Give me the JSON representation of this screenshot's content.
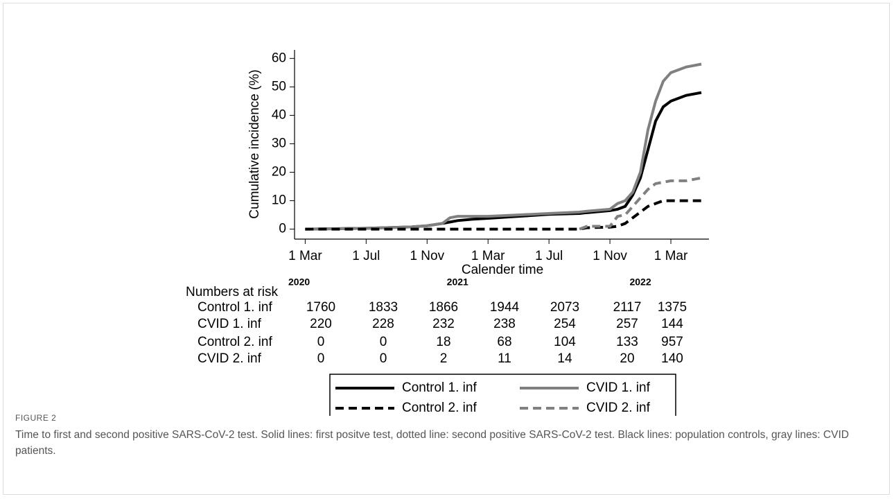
{
  "chart_data": {
    "type": "line",
    "x_label": "Calender time",
    "y_label": "Cumulative incidence (%)",
    "xlim": [
      -0.7,
      26.5
    ],
    "ylim": [
      -3.5,
      63
    ],
    "xticks": [
      {
        "value": 0,
        "label": "1 Mar"
      },
      {
        "value": 4,
        "label": "1 Jul"
      },
      {
        "value": 8,
        "label": "1 Nov"
      },
      {
        "value": 12,
        "label": "1 Mar"
      },
      {
        "value": 16,
        "label": "1 Jul"
      },
      {
        "value": 20,
        "label": "1 Nov"
      },
      {
        "value": 24,
        "label": "1 Mar"
      }
    ],
    "year_labels": [
      {
        "value": -0.4,
        "label": "2020"
      },
      {
        "value": 10,
        "label": "2021"
      },
      {
        "value": 22,
        "label": "2022"
      }
    ],
    "yticks": [
      0,
      10,
      20,
      30,
      40,
      50,
      60
    ],
    "x": [
      0,
      4,
      7,
      8,
      9,
      9.5,
      10,
      11,
      12,
      14,
      16,
      18,
      18.5,
      20,
      20.5,
      21,
      21.5,
      22,
      22.5,
      23,
      23.5,
      24,
      25,
      26
    ],
    "series": [
      {
        "name": "Control 1. inf",
        "color": "#000000",
        "style": "solid",
        "values": [
          0,
          0.3,
          0.8,
          1.2,
          2,
          2.5,
          3,
          3.5,
          3.8,
          4.5,
          5.2,
          5.5,
          5.8,
          6.5,
          7,
          8,
          12,
          18,
          28,
          38,
          43,
          45,
          47,
          48
        ]
      },
      {
        "name": "CVID 1. inf",
        "color": "#808080",
        "style": "solid",
        "values": [
          0,
          0.3,
          0.8,
          1.2,
          2,
          4,
          4.5,
          4.5,
          4.5,
          5,
          5.5,
          6,
          6.3,
          7,
          9,
          10,
          13,
          20,
          35,
          45,
          52,
          55,
          57,
          58
        ]
      },
      {
        "name": "Control 2. inf",
        "color": "#000000",
        "style": "dashed",
        "values": [
          0,
          0,
          0,
          0,
          0,
          0,
          0,
          0,
          0,
          0,
          0,
          0,
          0.5,
          0.7,
          1,
          2,
          4,
          6,
          8,
          9,
          10,
          10,
          10,
          10
        ]
      },
      {
        "name": "CVID 2. inf",
        "color": "#808080",
        "style": "dashed",
        "values": [
          null,
          null,
          null,
          null,
          null,
          null,
          null,
          null,
          null,
          null,
          null,
          0,
          1,
          1,
          4.5,
          5,
          8,
          11,
          14,
          16,
          16.5,
          17,
          17,
          18
        ]
      }
    ],
    "risk_table": {
      "title": "Numbers at risk",
      "rows": [
        {
          "name": "Control 1. inf",
          "values": [
            1760,
            1833,
            1866,
            1944,
            2073,
            2117,
            1375
          ]
        },
        {
          "name": "CVID 1. inf",
          "values": [
            220,
            228,
            232,
            238,
            254,
            257,
            144
          ]
        },
        {
          "name": "Control 2. inf",
          "values": [
            0,
            0,
            18,
            68,
            104,
            133,
            957
          ]
        },
        {
          "name": "CVID 2. inf",
          "values": [
            0,
            0,
            2,
            11,
            14,
            20,
            140
          ]
        }
      ]
    }
  },
  "caption": {
    "label": "FIGURE 2",
    "text": "Time to first and second positive SARS-CoV-2 test. Solid lines: first positve test, dotted line: second positive SARS-CoV-2 test. Black lines: population controls, gray lines: CVID patients."
  }
}
